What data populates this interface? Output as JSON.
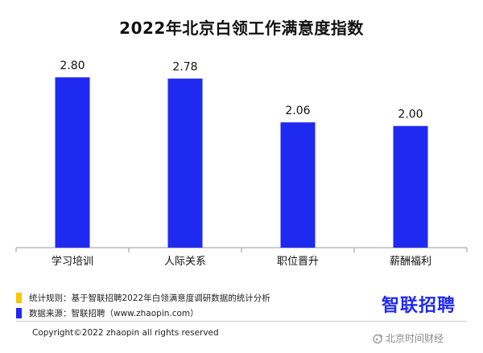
{
  "chart_data": {
    "type": "bar",
    "title": "2022年北京白领工作满意度指数",
    "categories": [
      "学习培训",
      "人际关系",
      "职位晋升",
      "薪酬福利"
    ],
    "values": [
      2.8,
      2.78,
      2.06,
      2.0
    ],
    "value_labels": [
      "2.80",
      "2.78",
      "2.06",
      "2.00"
    ],
    "ylim": [
      0,
      3.08
    ],
    "grid": false,
    "bar_color": "#1f2af0"
  },
  "notes": [
    {
      "text": "统计规则：基于智联招聘2022年白领满意度调研数据的统计分析",
      "color": "#f6c800"
    },
    {
      "text": "数据来源：智联招聘（www.zhaopin.com）",
      "color": "#1f2af0"
    }
  ],
  "logo": {
    "text": "智联招聘"
  },
  "copyright": "Copyright©2022 zhaopin all rights reserved",
  "watermark": {
    "text": "北京时间财经",
    "icon": "weibo-icon"
  }
}
